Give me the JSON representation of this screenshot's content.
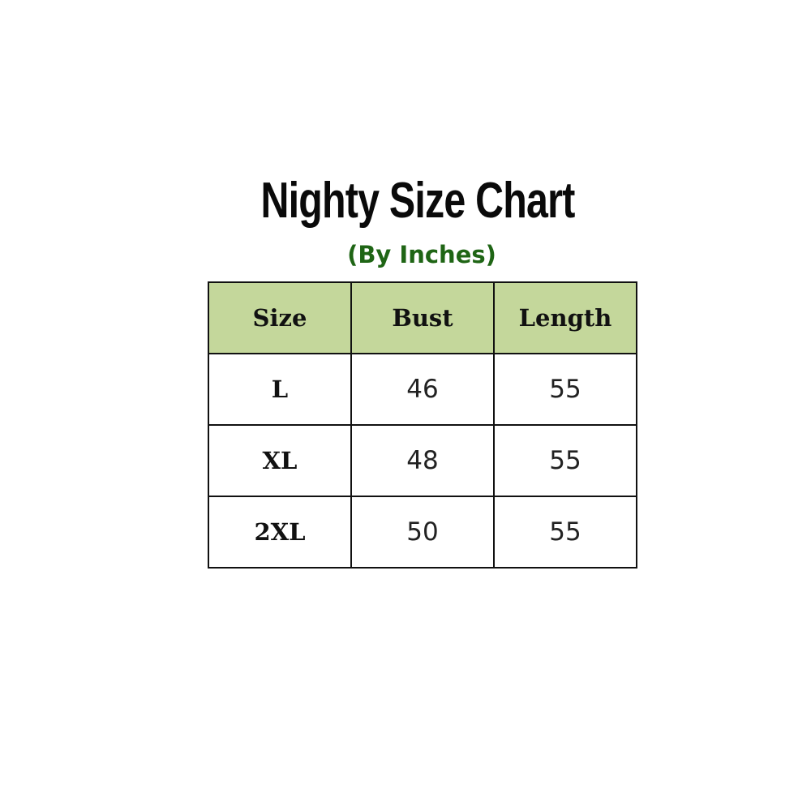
{
  "title": "Nighty Size Chart",
  "subtitle": "(By Inches)",
  "header_color": "#c4d79b",
  "table": {
    "headers": [
      "Size",
      "Bust",
      "Length"
    ],
    "rows": [
      [
        "L",
        "46",
        "55"
      ],
      [
        "XL",
        "48",
        "55"
      ],
      [
        "2XL",
        "50",
        "55"
      ]
    ]
  }
}
